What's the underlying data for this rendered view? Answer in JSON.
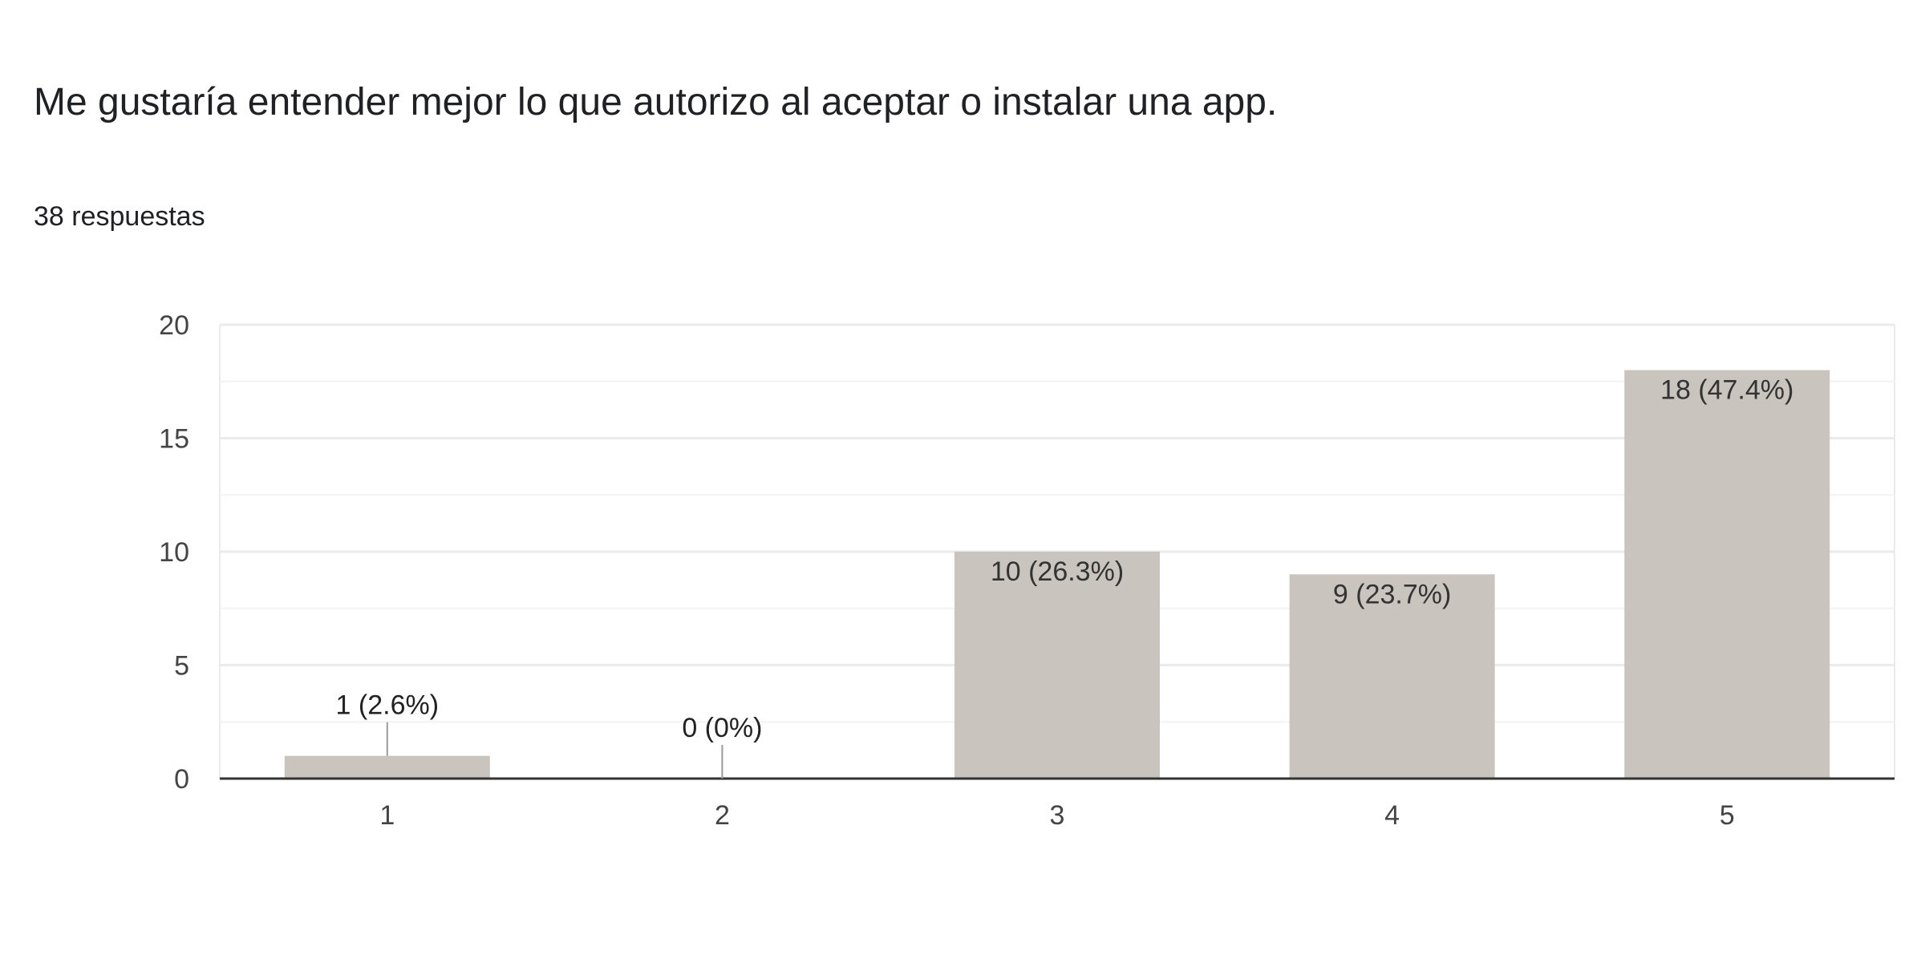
{
  "question": {
    "title": "Me gustaría entender mejor lo que autorizo al aceptar o instalar una app.",
    "responses_label": "38 respuestas"
  },
  "colors": {
    "bar": "#c9c5be",
    "grid": "#ebebeb",
    "axis": "#333333",
    "label": "#333333",
    "tick_text": "#444444",
    "leader": "#9a9a9a"
  },
  "chart_data": {
    "type": "bar",
    "categories": [
      "1",
      "2",
      "3",
      "4",
      "5"
    ],
    "values": [
      1,
      0,
      10,
      9,
      18
    ],
    "data_labels": [
      "1 (2.6%)",
      "0 (0%)",
      "10 (26.3%)",
      "9 (23.7%)",
      "18 (47.4%)"
    ],
    "ylim": [
      0,
      20
    ],
    "yticks": [
      0,
      5,
      10,
      15,
      20
    ],
    "minor_gridlines": [
      2.5,
      7.5,
      12.5,
      17.5
    ],
    "title": "",
    "xlabel": "",
    "ylabel": "",
    "grid": true
  }
}
